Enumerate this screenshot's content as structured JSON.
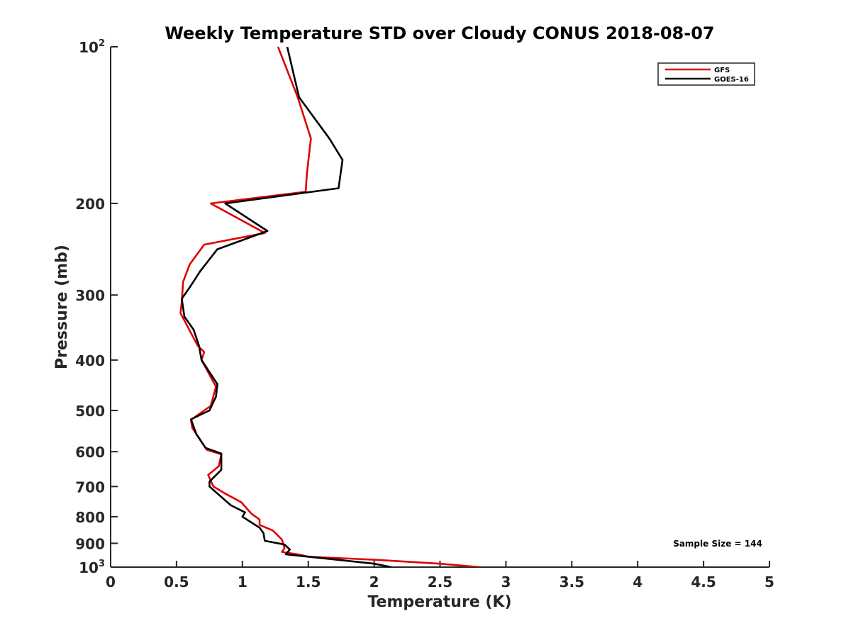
{
  "chart_data": {
    "type": "line",
    "title": "Weekly Temperature STD over Cloudy CONUS 2018-08-07",
    "xlabel": "Temperature (K)",
    "ylabel": "Pressure (mb)",
    "xlim": [
      0,
      5
    ],
    "ylim": [
      100,
      1000
    ],
    "y_scale": "log",
    "y_reversed": true,
    "grid": false,
    "legend_position": "top-right",
    "x_ticks": [
      "0",
      "0.5",
      "1",
      "1.5",
      "2",
      "2.5",
      "3",
      "3.5",
      "4",
      "4.5",
      "5"
    ],
    "y_ticks": [
      {
        "value": 100,
        "base": "10",
        "exp": "2"
      },
      {
        "value": 200,
        "label": "200"
      },
      {
        "value": 300,
        "label": "300"
      },
      {
        "value": 400,
        "label": "400"
      },
      {
        "value": 500,
        "label": "500"
      },
      {
        "value": 600,
        "label": "600"
      },
      {
        "value": 700,
        "label": "700"
      },
      {
        "value": 800,
        "label": "800"
      },
      {
        "value": 900,
        "label": "900"
      },
      {
        "value": 1000,
        "base": "10",
        "exp": "3"
      }
    ],
    "annotation": "Sample Size = 144",
    "series": [
      {
        "name": "GFS",
        "color": "#e00000",
        "points": [
          [
            1.27,
            100
          ],
          [
            1.42,
            125
          ],
          [
            1.52,
            150
          ],
          [
            1.49,
            175
          ],
          [
            1.48,
            190
          ],
          [
            0.76,
            200
          ],
          [
            1.17,
            228
          ],
          [
            0.71,
            240
          ],
          [
            0.6,
            262
          ],
          [
            0.55,
            283
          ],
          [
            0.54,
            310
          ],
          [
            0.53,
            325
          ],
          [
            0.66,
            375
          ],
          [
            0.71,
            386
          ],
          [
            0.69,
            400
          ],
          [
            0.8,
            450
          ],
          [
            0.76,
            490
          ],
          [
            0.61,
            521
          ],
          [
            0.62,
            540
          ],
          [
            0.73,
            595
          ],
          [
            0.84,
            607
          ],
          [
            0.82,
            640
          ],
          [
            0.74,
            665
          ],
          [
            0.78,
            700
          ],
          [
            0.86,
            720
          ],
          [
            0.99,
            750
          ],
          [
            1.07,
            790
          ],
          [
            1.13,
            810
          ],
          [
            1.13,
            830
          ],
          [
            1.23,
            850
          ],
          [
            1.3,
            885
          ],
          [
            1.32,
            920
          ],
          [
            1.3,
            935
          ],
          [
            1.42,
            945
          ],
          [
            1.5,
            955
          ],
          [
            2.0,
            968
          ],
          [
            2.5,
            985
          ],
          [
            2.8,
            1000
          ]
        ]
      },
      {
        "name": "GOES-16",
        "color": "#000000",
        "points": [
          [
            1.34,
            100
          ],
          [
            1.43,
            125
          ],
          [
            1.66,
            150
          ],
          [
            1.76,
            165
          ],
          [
            1.73,
            187
          ],
          [
            0.87,
            200
          ],
          [
            1.19,
            226
          ],
          [
            0.81,
            245
          ],
          [
            0.68,
            270
          ],
          [
            0.6,
            290
          ],
          [
            0.54,
            305
          ],
          [
            0.56,
            330
          ],
          [
            0.63,
            350
          ],
          [
            0.67,
            375
          ],
          [
            0.69,
            400
          ],
          [
            0.81,
            445
          ],
          [
            0.8,
            470
          ],
          [
            0.75,
            500
          ],
          [
            0.61,
            520
          ],
          [
            0.65,
            555
          ],
          [
            0.72,
            590
          ],
          [
            0.84,
            605
          ],
          [
            0.84,
            650
          ],
          [
            0.75,
            685
          ],
          [
            0.75,
            700
          ],
          [
            0.91,
            760
          ],
          [
            1.02,
            785
          ],
          [
            1.0,
            800
          ],
          [
            1.13,
            840
          ],
          [
            1.16,
            860
          ],
          [
            1.17,
            890
          ],
          [
            1.32,
            905
          ],
          [
            1.36,
            925
          ],
          [
            1.33,
            945
          ],
          [
            1.5,
            955
          ],
          [
            2.0,
            985
          ],
          [
            2.13,
            1000
          ]
        ]
      }
    ]
  }
}
